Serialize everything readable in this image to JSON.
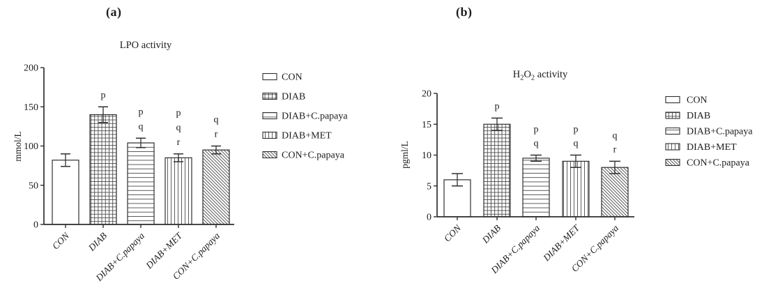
{
  "figure": {
    "background": "#ffffff",
    "ink_color": "#2f2f2f",
    "text_color": "#1c1c1c",
    "pattern_color": "#4b4b4b"
  },
  "panels": [
    {
      "label": "(a)"
    },
    {
      "label": "(b)"
    }
  ],
  "chart_data": [
    {
      "type": "bar",
      "title": "LPO activity",
      "title_parts": [
        {
          "text": "LPO activity",
          "sub": false
        }
      ],
      "xlabel": "",
      "ylabel": "mmol/L",
      "ylim": [
        0,
        200
      ],
      "yticks": [
        0,
        50,
        100,
        150,
        200
      ],
      "grid": false,
      "categories": [
        "CON",
        "DIAB",
        "DIAB+C.papaya",
        "DIAB+MET",
        "CON+C.papaya"
      ],
      "values": [
        82,
        140,
        104,
        85,
        95
      ],
      "errors": [
        8,
        10,
        6,
        5,
        5
      ],
      "significance_letters": [
        [],
        [
          "p"
        ],
        [
          "p",
          "q"
        ],
        [
          "p",
          "q",
          "r"
        ],
        [
          "q",
          "r"
        ]
      ],
      "bar_patterns": [
        "plain",
        "grid",
        "horizontal",
        "vertical",
        "diagonal"
      ],
      "legend_position": "right",
      "legend": [
        {
          "label": "CON",
          "pattern": "plain"
        },
        {
          "label": "DIAB",
          "pattern": "grid"
        },
        {
          "label": "DIAB+C.papaya",
          "pattern": "horizontal"
        },
        {
          "label": "DIAB+MET",
          "pattern": "vertical"
        },
        {
          "label": "CON+C.papaya",
          "pattern": "diagonal"
        }
      ]
    },
    {
      "type": "bar",
      "title": "H2O2 activity",
      "title_parts": [
        {
          "text": "H",
          "sub": false
        },
        {
          "text": "2",
          "sub": true
        },
        {
          "text": "O",
          "sub": false
        },
        {
          "text": "2",
          "sub": true
        },
        {
          "text": " activity",
          "sub": false
        }
      ],
      "xlabel": "",
      "ylabel": "pgml/L",
      "ylim": [
        0,
        20
      ],
      "yticks": [
        0,
        5,
        10,
        15,
        20
      ],
      "grid": false,
      "categories": [
        "CON",
        "DIAB",
        "DIAB+C.papaya",
        "DIAB+MET",
        "CON+C.papaya"
      ],
      "values": [
        6,
        15,
        9.5,
        9,
        8
      ],
      "errors": [
        1,
        1,
        0.5,
        1,
        1
      ],
      "significance_letters": [
        [],
        [
          "p"
        ],
        [
          "p",
          "q"
        ],
        [
          "p",
          "q"
        ],
        [
          "q",
          "r"
        ]
      ],
      "bar_patterns": [
        "plain",
        "grid",
        "horizontal",
        "vertical",
        "diagonal"
      ],
      "legend_position": "right",
      "legend": [
        {
          "label": "CON",
          "pattern": "plain"
        },
        {
          "label": "DIAB",
          "pattern": "grid"
        },
        {
          "label": "DIAB+C.papaya",
          "pattern": "horizontal"
        },
        {
          "label": "DIAB+MET",
          "pattern": "vertical"
        },
        {
          "label": "CON+C.papaya",
          "pattern": "diagonal"
        }
      ]
    }
  ]
}
